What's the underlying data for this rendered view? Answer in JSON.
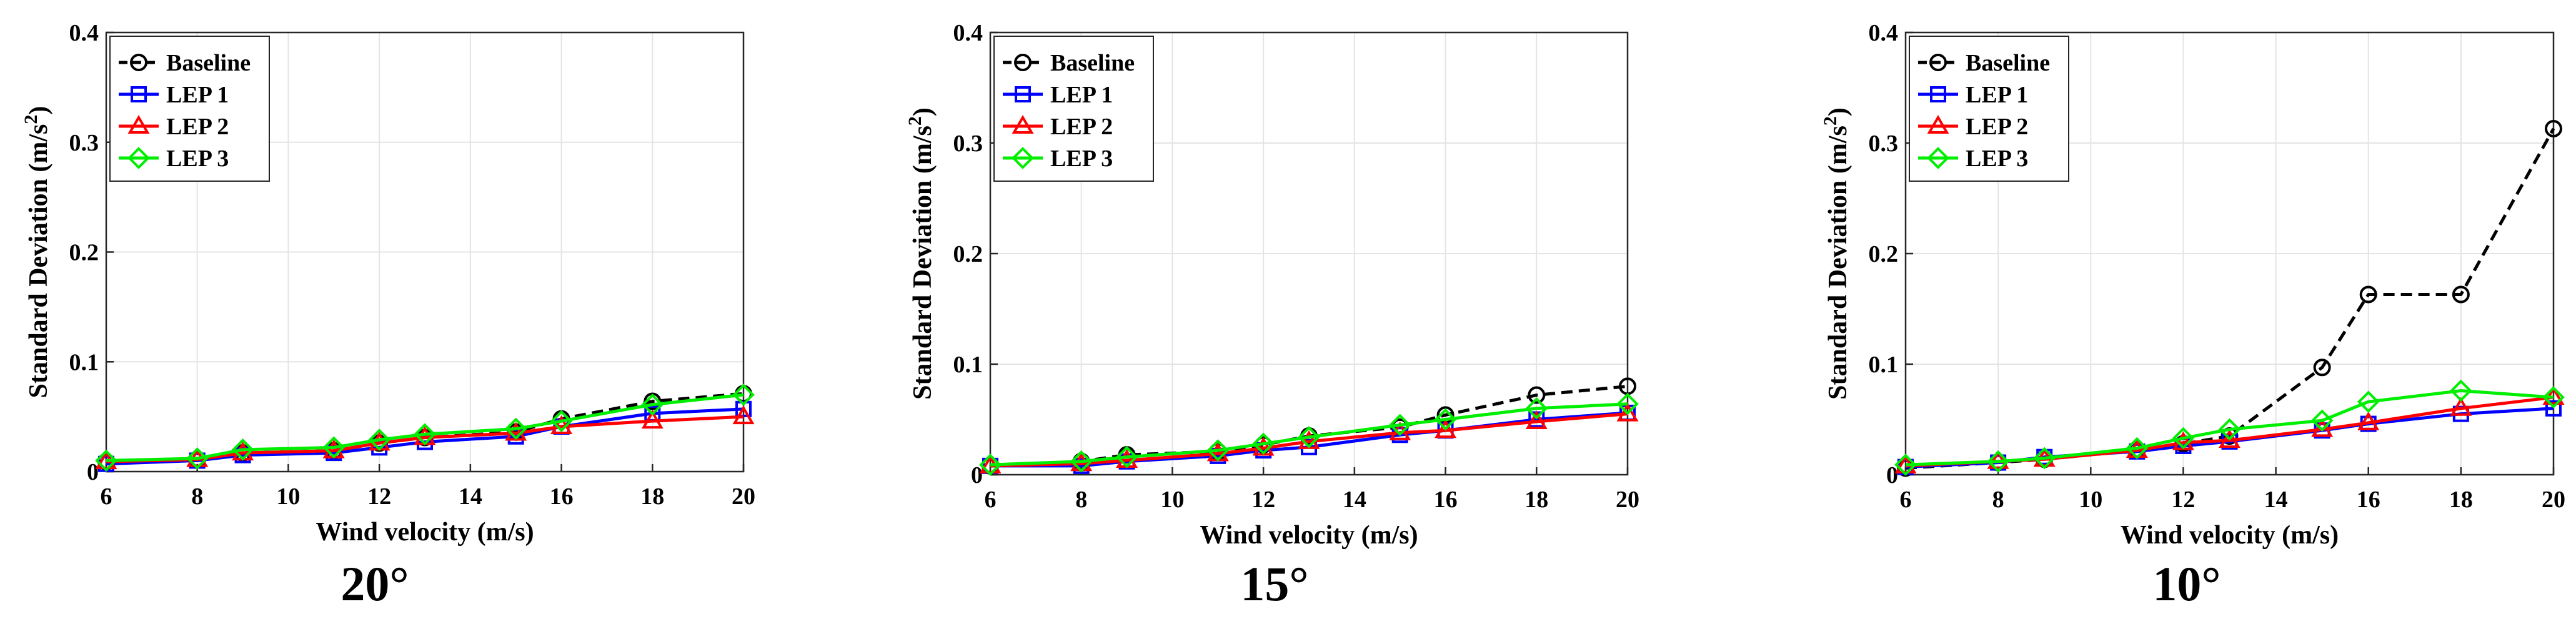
{
  "chart_data": [
    {
      "type": "line",
      "caption": "20°",
      "xlabel": "Wind velocity (m/s)",
      "ylabel": "Standard Deviation (m/s",
      "ylabel_sup": "2",
      "ylabel_end": ")",
      "xlim": [
        6,
        20
      ],
      "ylim": [
        0,
        0.4
      ],
      "xticks": [
        "6",
        "8",
        "10",
        "12",
        "14",
        "16",
        "18",
        "20"
      ],
      "yticks": [
        "0",
        "0.1",
        "0.2",
        "0.3",
        "0.4"
      ],
      "x": [
        6,
        8,
        9,
        11,
        12,
        13,
        15,
        16,
        18,
        20
      ],
      "series": [
        {
          "name": "Baseline",
          "color": "#000000",
          "marker": "circle",
          "dash": true,
          "values": [
            0.009,
            0.011,
            0.017,
            0.019,
            0.026,
            0.031,
            0.036,
            0.048,
            0.064,
            0.071
          ]
        },
        {
          "name": "LEP 1",
          "color": "#0000ff",
          "marker": "square",
          "dash": false,
          "values": [
            0.007,
            0.01,
            0.015,
            0.017,
            0.022,
            0.027,
            0.032,
            0.041,
            0.053,
            0.057
          ]
        },
        {
          "name": "LEP 2",
          "color": "#ff0000",
          "marker": "triangle",
          "dash": false,
          "values": [
            0.009,
            0.011,
            0.017,
            0.019,
            0.026,
            0.031,
            0.035,
            0.041,
            0.046,
            0.05
          ]
        },
        {
          "name": "LEP 3",
          "color": "#00ee00",
          "marker": "diamond",
          "dash": false,
          "values": [
            0.01,
            0.012,
            0.02,
            0.022,
            0.029,
            0.034,
            0.039,
            0.046,
            0.061,
            0.07
          ]
        }
      ]
    },
    {
      "type": "line",
      "caption": "15°",
      "xlabel": "Wind velocity (m/s)",
      "ylabel": "Standard Deviation (m/s",
      "ylabel_sup": "2",
      "ylabel_end": ")",
      "xlim": [
        6,
        20
      ],
      "ylim": [
        0,
        0.4
      ],
      "xticks": [
        "6",
        "8",
        "10",
        "12",
        "14",
        "16",
        "18",
        "20"
      ],
      "yticks": [
        "0",
        "0.1",
        "0.2",
        "0.3",
        "0.4"
      ],
      "x": [
        6,
        8,
        9,
        11,
        12,
        13,
        15,
        16,
        18,
        20
      ],
      "series": [
        {
          "name": "Baseline",
          "color": "#000000",
          "marker": "circle",
          "dash": true,
          "values": [
            0.008,
            0.012,
            0.018,
            0.021,
            0.027,
            0.035,
            0.043,
            0.054,
            0.072,
            0.08
          ]
        },
        {
          "name": "LEP 1",
          "color": "#0000ff",
          "marker": "square",
          "dash": false,
          "values": [
            0.008,
            0.008,
            0.012,
            0.017,
            0.022,
            0.025,
            0.036,
            0.04,
            0.05,
            0.056
          ]
        },
        {
          "name": "LEP 2",
          "color": "#ff0000",
          "marker": "triangle",
          "dash": false,
          "values": [
            0.008,
            0.01,
            0.013,
            0.019,
            0.024,
            0.03,
            0.038,
            0.04,
            0.048,
            0.055
          ]
        },
        {
          "name": "LEP 3",
          "color": "#00ee00",
          "marker": "diamond",
          "dash": false,
          "values": [
            0.009,
            0.012,
            0.016,
            0.022,
            0.028,
            0.034,
            0.045,
            0.05,
            0.06,
            0.064
          ]
        }
      ]
    },
    {
      "type": "line",
      "caption": "10°",
      "xlabel": "Wind velocity (m/s)",
      "ylabel": "Standard Deviation (m/s",
      "ylabel_sup": "2",
      "ylabel_end": ")",
      "xlim": [
        6,
        20
      ],
      "ylim": [
        0,
        0.4
      ],
      "xticks": [
        "6",
        "8",
        "10",
        "12",
        "14",
        "16",
        "18",
        "20"
      ],
      "yticks": [
        "0",
        "0.1",
        "0.2",
        "0.3",
        "0.4"
      ],
      "x": [
        6,
        8,
        9,
        11,
        12,
        13,
        15,
        16,
        18,
        20
      ],
      "series": [
        {
          "name": "Baseline",
          "color": "#000000",
          "marker": "circle",
          "dash": true,
          "values": [
            0.006,
            0.011,
            0.014,
            0.022,
            0.028,
            0.035,
            0.097,
            0.163,
            0.163,
            0.313
          ]
        },
        {
          "name": "LEP 1",
          "color": "#0000ff",
          "marker": "square",
          "dash": false,
          "values": [
            0.007,
            0.011,
            0.016,
            0.021,
            0.026,
            0.03,
            0.04,
            0.046,
            0.055,
            0.06
          ]
        },
        {
          "name": "LEP 2",
          "color": "#ff0000",
          "marker": "triangle",
          "dash": false,
          "values": [
            0.008,
            0.012,
            0.014,
            0.022,
            0.029,
            0.031,
            0.041,
            0.047,
            0.06,
            0.07
          ]
        },
        {
          "name": "LEP 3",
          "color": "#00ee00",
          "marker": "diamond",
          "dash": false,
          "values": [
            0.009,
            0.012,
            0.015,
            0.024,
            0.033,
            0.041,
            0.049,
            0.066,
            0.076,
            0.07
          ]
        }
      ]
    }
  ]
}
